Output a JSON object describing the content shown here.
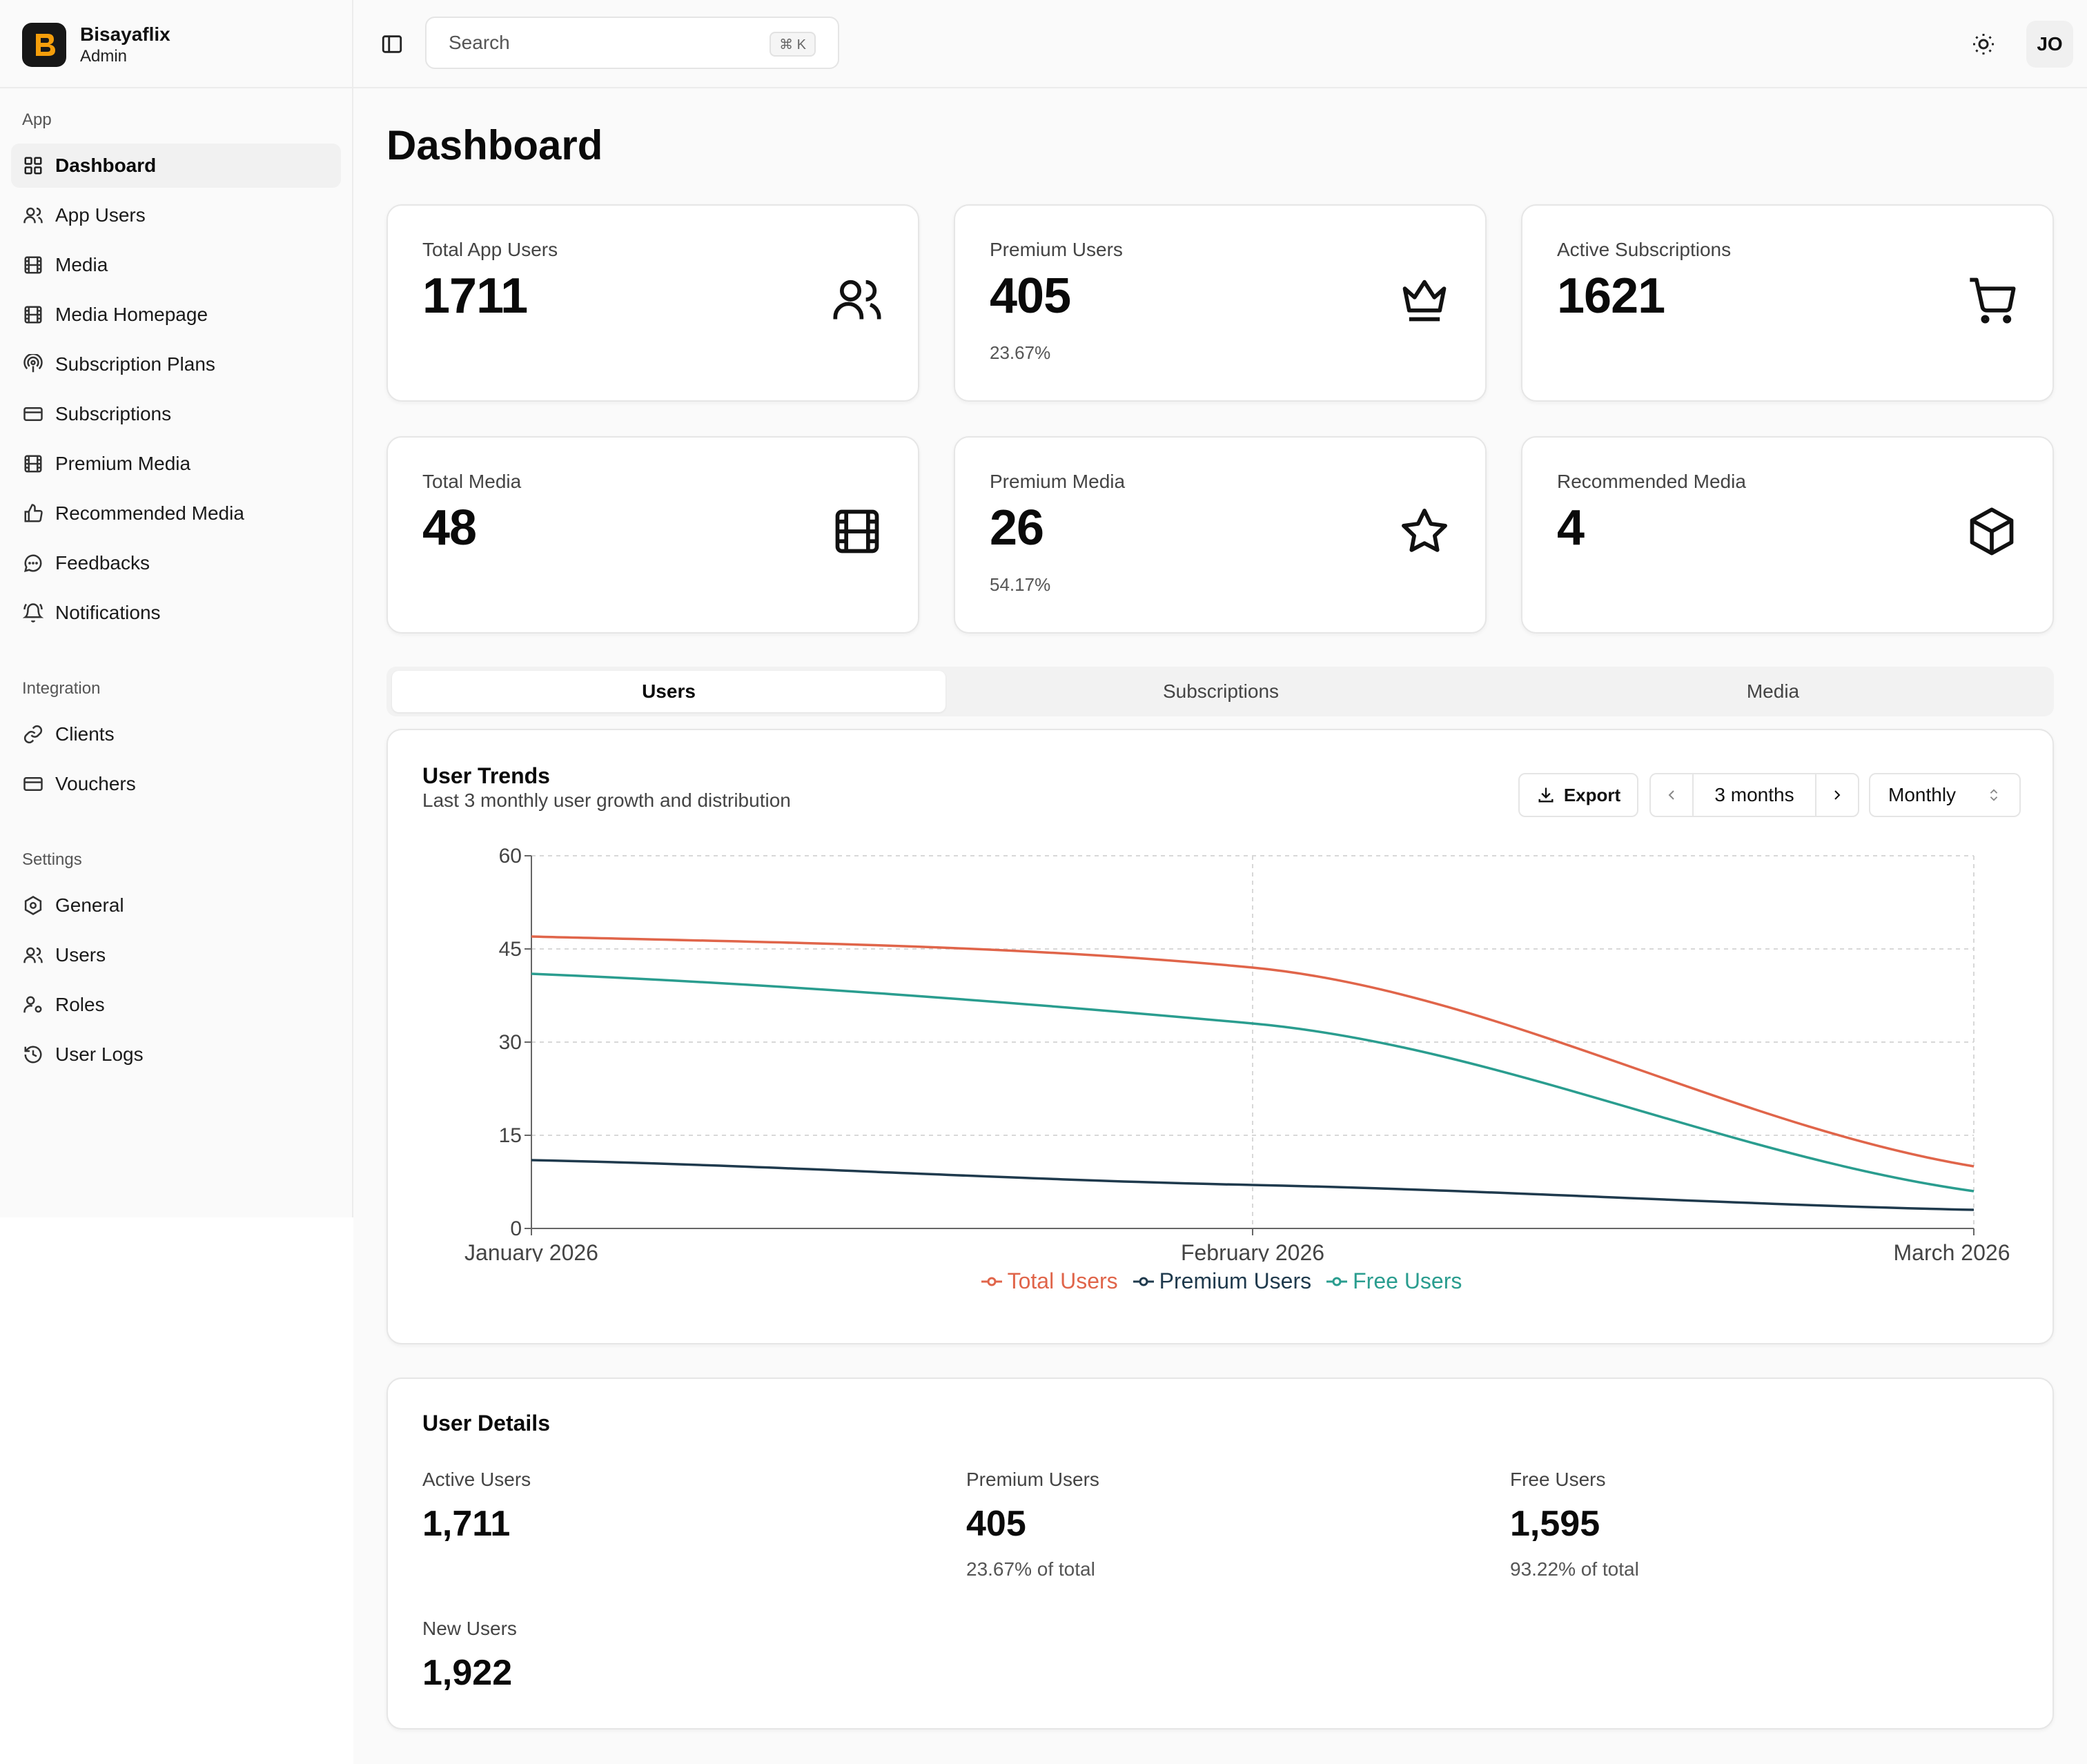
{
  "brand": {
    "name": "Bisayaflix",
    "role": "Admin"
  },
  "sidebar": {
    "groups": [
      {
        "label": "App",
        "items": [
          {
            "label": "Dashboard",
            "icon": "layout-grid-icon",
            "active": true
          },
          {
            "label": "App Users",
            "icon": "users-icon"
          },
          {
            "label": "Media",
            "icon": "film-icon"
          },
          {
            "label": "Media Homepage",
            "icon": "film-icon"
          },
          {
            "label": "Subscription Plans",
            "icon": "podcast-icon"
          },
          {
            "label": "Subscriptions",
            "icon": "credit-card-icon"
          },
          {
            "label": "Premium Media",
            "icon": "film-icon"
          },
          {
            "label": "Recommended Media",
            "icon": "thumbs-up-icon"
          },
          {
            "label": "Feedbacks",
            "icon": "message-circle-icon"
          },
          {
            "label": "Notifications",
            "icon": "bell-ring-icon"
          }
        ]
      },
      {
        "label": "Integration",
        "items": [
          {
            "label": "Clients",
            "icon": "link-icon"
          },
          {
            "label": "Vouchers",
            "icon": "credit-card-icon"
          }
        ]
      },
      {
        "label": "Settings",
        "items": [
          {
            "label": "General",
            "icon": "settings-icon"
          },
          {
            "label": "Users",
            "icon": "users-icon"
          },
          {
            "label": "Roles",
            "icon": "user-cog-icon"
          },
          {
            "label": "User Logs",
            "icon": "history-icon"
          }
        ]
      }
    ]
  },
  "topbar": {
    "search_placeholder": "Search",
    "shortcut": "⌘ K",
    "avatar": "JO"
  },
  "page": {
    "title": "Dashboard"
  },
  "stats": [
    {
      "label": "Total App Users",
      "value": "1711",
      "sub": "",
      "icon": "users-icon"
    },
    {
      "label": "Premium Users",
      "value": "405",
      "sub": "23.67%",
      "icon": "crown-icon"
    },
    {
      "label": "Active Subscriptions",
      "value": "1621",
      "sub": "",
      "icon": "shopping-cart-icon"
    },
    {
      "label": "Total Media",
      "value": "48",
      "sub": "",
      "icon": "film-icon"
    },
    {
      "label": "Premium Media",
      "value": "26",
      "sub": "54.17%",
      "icon": "star-icon"
    },
    {
      "label": "Recommended Media",
      "value": "4",
      "sub": "",
      "icon": "box-icon"
    }
  ],
  "tabs": [
    {
      "label": "Users",
      "active": true
    },
    {
      "label": "Subscriptions"
    },
    {
      "label": "Media"
    }
  ],
  "trends": {
    "title": "User Trends",
    "subtitle": "Last 3 monthly user growth and distribution",
    "export_label": "Export",
    "range_label": "3 months",
    "period_label": "Monthly"
  },
  "chart_data": {
    "type": "line",
    "categories": [
      "January 2026",
      "February 2026",
      "March 2026"
    ],
    "series": [
      {
        "name": "Total Users",
        "color": "#e0654a",
        "values": [
          47,
          42,
          10
        ]
      },
      {
        "name": "Premium Users",
        "color": "#1f3a4d",
        "values": [
          11,
          7,
          3
        ]
      },
      {
        "name": "Free Users",
        "color": "#2a9d8f",
        "values": [
          41,
          33,
          6
        ]
      }
    ],
    "yticks": [
      0,
      15,
      30,
      45,
      60
    ],
    "ylim": [
      0,
      60
    ],
    "grid": true,
    "legend": "bottom-center"
  },
  "details": {
    "title": "User Details",
    "items": [
      {
        "label": "Active Users",
        "value": "1,711",
        "sub": ""
      },
      {
        "label": "Premium Users",
        "value": "405",
        "sub": "23.67% of total"
      },
      {
        "label": "Free Users",
        "value": "1,595",
        "sub": "93.22% of total"
      },
      {
        "label": "New Users",
        "value": "1,922",
        "sub": ""
      }
    ]
  }
}
